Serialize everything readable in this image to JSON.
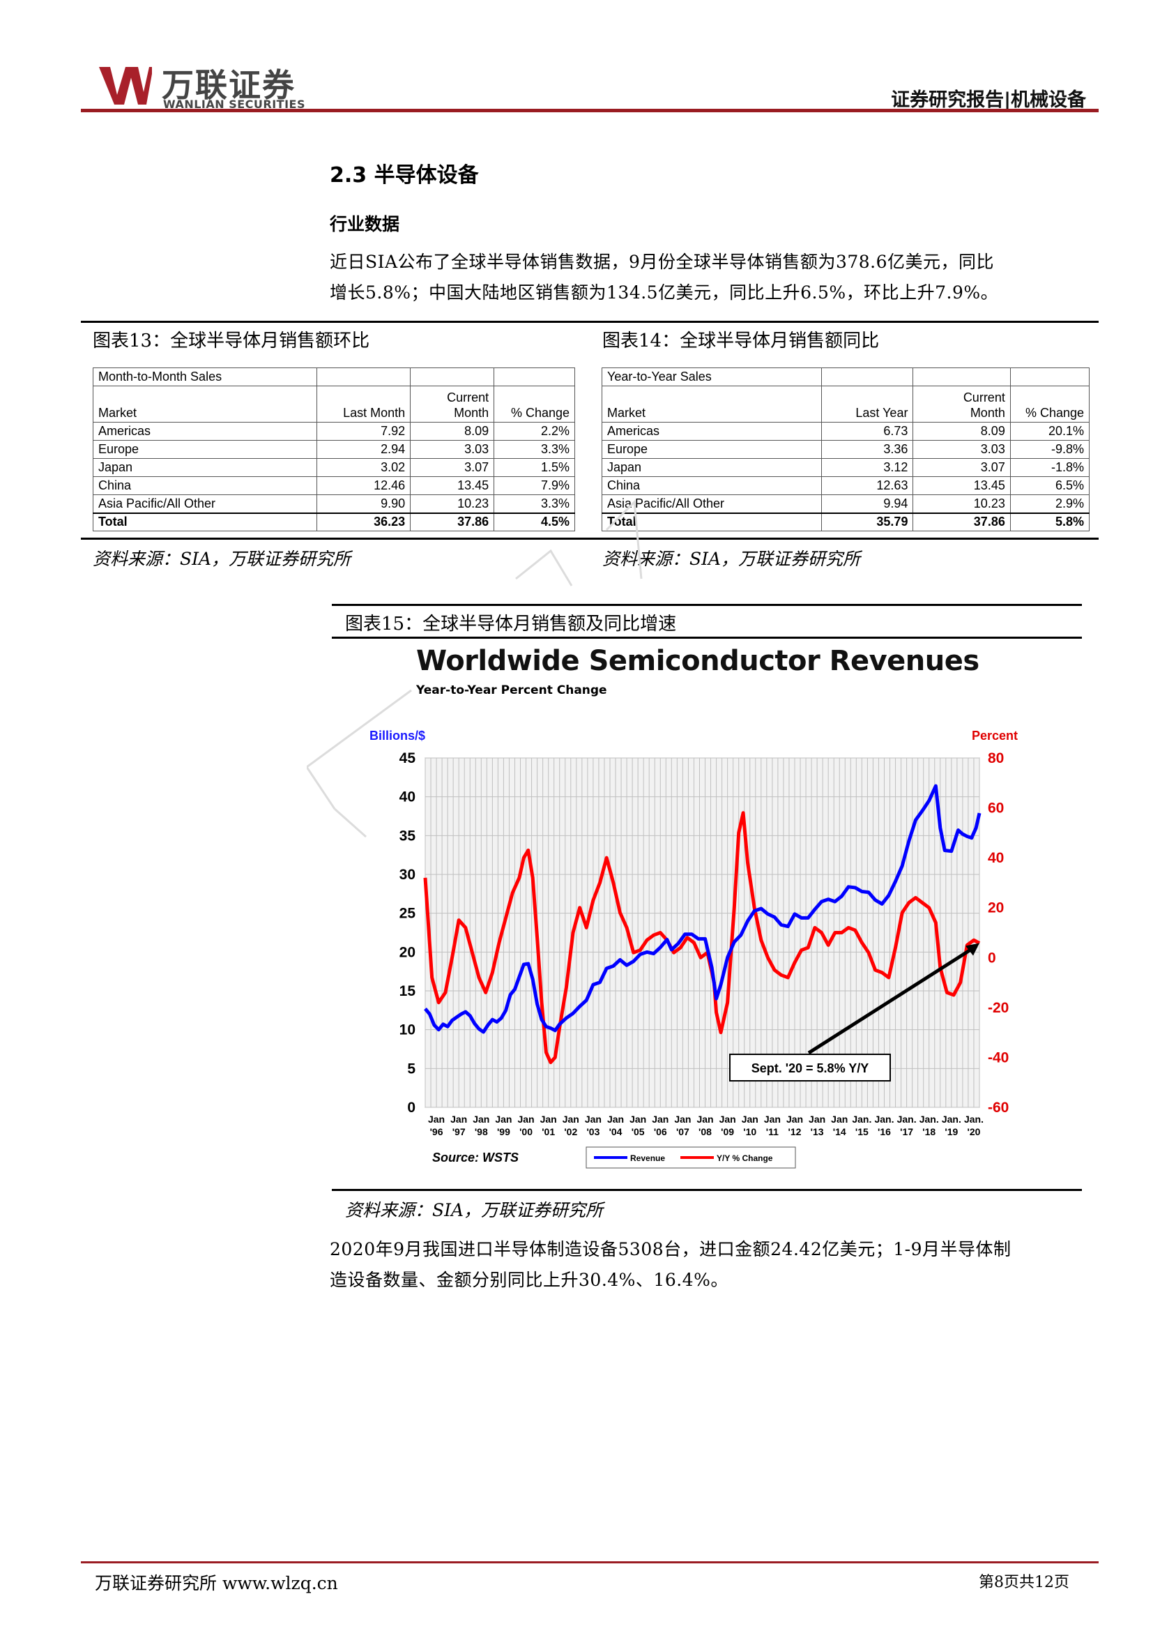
{
  "header": {
    "logo_cn": "万联证券",
    "logo_en": "WANLIAN SECURITIES",
    "report_tag": "证券研究报告|机械设备"
  },
  "section": {
    "title": "2.3 半导体设备",
    "subtitle": "行业数据",
    "para1_line1": "近日SIA公布了全球半导体销售数据，9月份全球半导体销售额为378.6亿美元，同比",
    "para1_line2": "增长5.8%；中国大陆地区销售额为134.5亿美元，同比上升6.5%，环比上升7.9%。",
    "para2_line1": "2020年9月我国进口半导体制造设备5308台，进口金额24.42亿美元；1-9月半导体制",
    "para2_line2": "造设备数量、金额分别同比上升30.4%、16.4%。"
  },
  "fig13": {
    "title": "图表13：全球半导体月销售额环比",
    "source": "资料来源：SIA，万联证券研究所",
    "table": {
      "caption": "Month-to-Month Sales",
      "headers": [
        "Market",
        "Last Month",
        "Current Month",
        "% Change"
      ],
      "header_current_l1": "Current",
      "header_current_l2": "Month",
      "rows": [
        [
          "Americas",
          "7.92",
          "8.09",
          "2.2%"
        ],
        [
          "Europe",
          "2.94",
          "3.03",
          "3.3%"
        ],
        [
          "Japan",
          "3.02",
          "3.07",
          "1.5%"
        ],
        [
          "China",
          "12.46",
          "13.45",
          "7.9%"
        ],
        [
          "Asia Pacific/All Other",
          "9.90",
          "10.23",
          "3.3%"
        ]
      ],
      "total": [
        "Total",
        "36.23",
        "37.86",
        "4.5%"
      ]
    }
  },
  "fig14": {
    "title": "图表14：全球半导体月销售额同比",
    "source": "资料来源：SIA，万联证券研究所",
    "table": {
      "caption": "Year-to-Year Sales",
      "headers": [
        "Market",
        "Last Year",
        "Current Month",
        "% Change"
      ],
      "header_current_l1": "Current",
      "header_current_l2": "Month",
      "rows": [
        [
          "Americas",
          "6.73",
          "8.09",
          "20.1%"
        ],
        [
          "Europe",
          "3.36",
          "3.03",
          "-9.8%"
        ],
        [
          "Japan",
          "3.12",
          "3.07",
          "-1.8%"
        ],
        [
          "China",
          "12.63",
          "13.45",
          "6.5%"
        ],
        [
          "Asia Pacific/All Other",
          "9.94",
          "10.23",
          "2.9%"
        ]
      ],
      "total": [
        "Total",
        "35.79",
        "37.86",
        "5.8%"
      ]
    }
  },
  "fig15": {
    "title": "图表15：全球半导体月销售额及同比增速",
    "source": "资料来源：SIA，万联证券研究所"
  },
  "chart_data": {
    "type": "line",
    "title": "Worldwide Semiconductor Revenues",
    "subtitle": "Year-to-Year Percent Change",
    "ylabel": "Billions/$",
    "y2label": "Percent",
    "ylim": [
      0,
      45
    ],
    "y2lim": [
      -60,
      80
    ],
    "yticks": [
      0,
      5,
      10,
      15,
      20,
      25,
      30,
      35,
      40,
      45
    ],
    "y2ticks": [
      -60,
      -40,
      -20,
      0,
      20,
      40,
      60,
      80
    ],
    "x_tick_top": [
      "Jan",
      "Jan",
      "Jan",
      "Jan",
      "Jan",
      "Jan",
      "Jan",
      "Jan",
      "Jan",
      "Jan",
      "Jan",
      "Jan",
      "Jan",
      "Jan",
      "Jan",
      "Jan",
      "Jan",
      "Jan",
      "Jan",
      "Jan.",
      "Jan.",
      "Jan.",
      "Jan.",
      "Jan.",
      "Jan."
    ],
    "x_tick_bottom": [
      "'96",
      "'97",
      "'98",
      "'99",
      "'00",
      "'01",
      "'02",
      "'03",
      "'04",
      "'05",
      "'06",
      "'07",
      "'08",
      "'09",
      "'10",
      "'11",
      "'12",
      "'13",
      "'14",
      "'15",
      "'16",
      "'17",
      "'18",
      "'19",
      "'20"
    ],
    "x_start": 1996,
    "x_end": 2020.75,
    "grid": true,
    "source_note": "Source: WSTS",
    "annotation": "Sept. '20 = 5.8% Y/Y",
    "legend_position": "bottom",
    "colors": {
      "revenue": "#0000ff",
      "yoy": "#ff0000",
      "bg": "#f2f2f2",
      "grid": "#bfbfbf"
    },
    "series": [
      {
        "name": "Revenue",
        "axis": "left",
        "x": [
          1996.0,
          1996.2,
          1996.4,
          1996.6,
          1996.8,
          1997.0,
          1997.2,
          1997.4,
          1997.6,
          1997.8,
          1998.0,
          1998.2,
          1998.4,
          1998.6,
          1998.8,
          1999.0,
          1999.2,
          1999.4,
          1999.6,
          1999.8,
          2000.0,
          2000.2,
          2000.4,
          2000.6,
          2000.8,
          2001.0,
          2001.2,
          2001.4,
          2001.6,
          2001.8,
          2002.0,
          2002.3,
          2002.6,
          2002.9,
          2003.2,
          2003.5,
          2003.8,
          2004.1,
          2004.4,
          2004.7,
          2005.0,
          2005.3,
          2005.6,
          2005.9,
          2006.2,
          2006.5,
          2006.8,
          2007.0,
          2007.3,
          2007.6,
          2007.9,
          2008.2,
          2008.5,
          2008.8,
          2009.0,
          2009.2,
          2009.5,
          2009.8,
          2010.1,
          2010.4,
          2010.7,
          2011.0,
          2011.3,
          2011.6,
          2011.9,
          2012.2,
          2012.5,
          2012.8,
          2013.1,
          2013.4,
          2013.7,
          2014.0,
          2014.3,
          2014.6,
          2014.9,
          2015.2,
          2015.5,
          2015.8,
          2016.1,
          2016.4,
          2016.7,
          2017.0,
          2017.3,
          2017.6,
          2017.9,
          2018.2,
          2018.5,
          2018.8,
          2019.0,
          2019.2,
          2019.5,
          2019.8,
          2020.0,
          2020.2,
          2020.4,
          2020.6,
          2020.75
        ],
        "y": [
          12.7,
          12.0,
          10.6,
          10.0,
          10.7,
          10.4,
          11.2,
          11.6,
          12.0,
          12.3,
          11.8,
          10.8,
          10.1,
          9.7,
          10.6,
          11.3,
          11.0,
          11.5,
          12.5,
          14.5,
          15.2,
          16.8,
          18.4,
          18.5,
          16.5,
          13.3,
          11.3,
          10.4,
          10.2,
          9.9,
          10.7,
          11.5,
          12.1,
          13.0,
          13.8,
          15.8,
          16.1,
          17.9,
          18.2,
          19.0,
          18.3,
          18.8,
          19.7,
          20.0,
          19.8,
          20.6,
          21.6,
          20.3,
          21.1,
          22.3,
          22.3,
          21.7,
          21.7,
          18.0,
          14.0,
          15.8,
          19.3,
          21.3,
          22.2,
          24.0,
          25.3,
          25.6,
          24.9,
          24.5,
          23.5,
          23.3,
          24.9,
          24.4,
          24.4,
          25.5,
          26.5,
          26.8,
          26.5,
          27.2,
          28.4,
          28.3,
          27.8,
          27.7,
          26.7,
          26.2,
          27.3,
          29.1,
          31.1,
          34.3,
          37.0,
          38.2,
          39.5,
          41.4,
          36.0,
          33.1,
          33.0,
          35.7,
          35.2,
          34.9,
          34.7,
          36.0,
          37.9
        ]
      },
      {
        "name": "Y/Y % Change",
        "axis": "right",
        "x": [
          1996.0,
          1996.3,
          1996.6,
          1996.9,
          1997.2,
          1997.5,
          1997.8,
          1998.1,
          1998.4,
          1998.7,
          1999.0,
          1999.3,
          1999.6,
          1999.9,
          2000.2,
          2000.4,
          2000.6,
          2000.8,
          2001.0,
          2001.2,
          2001.4,
          2001.6,
          2001.8,
          2002.0,
          2002.3,
          2002.6,
          2002.9,
          2003.2,
          2003.5,
          2003.8,
          2004.1,
          2004.4,
          2004.7,
          2005.0,
          2005.3,
          2005.6,
          2005.9,
          2006.2,
          2006.5,
          2006.8,
          2007.1,
          2007.4,
          2007.7,
          2008.0,
          2008.3,
          2008.6,
          2008.9,
          2009.0,
          2009.2,
          2009.5,
          2009.8,
          2010.0,
          2010.2,
          2010.4,
          2010.7,
          2011.0,
          2011.3,
          2011.6,
          2011.9,
          2012.2,
          2012.5,
          2012.8,
          2013.1,
          2013.4,
          2013.7,
          2014.0,
          2014.3,
          2014.6,
          2014.9,
          2015.2,
          2015.5,
          2015.8,
          2016.1,
          2016.4,
          2016.7,
          2017.0,
          2017.3,
          2017.6,
          2017.9,
          2018.2,
          2018.5,
          2018.8,
          2019.0,
          2019.3,
          2019.6,
          2019.9,
          2020.2,
          2020.5,
          2020.75
        ],
        "y": [
          32.0,
          -8.0,
          -18.0,
          -14.0,
          0.0,
          15.0,
          12.0,
          2.0,
          -8.0,
          -14.0,
          -6.0,
          6.0,
          16.0,
          26.0,
          32.0,
          40.0,
          43.0,
          32.0,
          8.0,
          -18.0,
          -38.0,
          -42.0,
          -40.0,
          -28.0,
          -12.0,
          10.0,
          20.0,
          12.0,
          23.0,
          30.0,
          40.0,
          30.0,
          18.0,
          12.0,
          2.0,
          3.0,
          7.0,
          9.0,
          10.0,
          7.0,
          2.0,
          4.0,
          8.0,
          6.0,
          0.0,
          2.0,
          -10.0,
          -22.0,
          -30.0,
          -18.0,
          20.0,
          50.0,
          58.0,
          38.0,
          20.0,
          7.0,
          0.0,
          -5.0,
          -7.0,
          -8.0,
          -2.0,
          3.0,
          4.0,
          12.0,
          10.0,
          5.0,
          10.0,
          10.0,
          12.0,
          11.0,
          6.0,
          2.0,
          -5.0,
          -6.0,
          -8.0,
          4.0,
          18.0,
          22.0,
          24.0,
          22.0,
          20.0,
          14.0,
          -4.0,
          -14.0,
          -15.0,
          -10.0,
          5.0,
          7.0,
          5.8
        ]
      }
    ]
  },
  "footer": {
    "left": "万联证券研究所 www.wlzq.cn",
    "right": "第8页共12页"
  }
}
